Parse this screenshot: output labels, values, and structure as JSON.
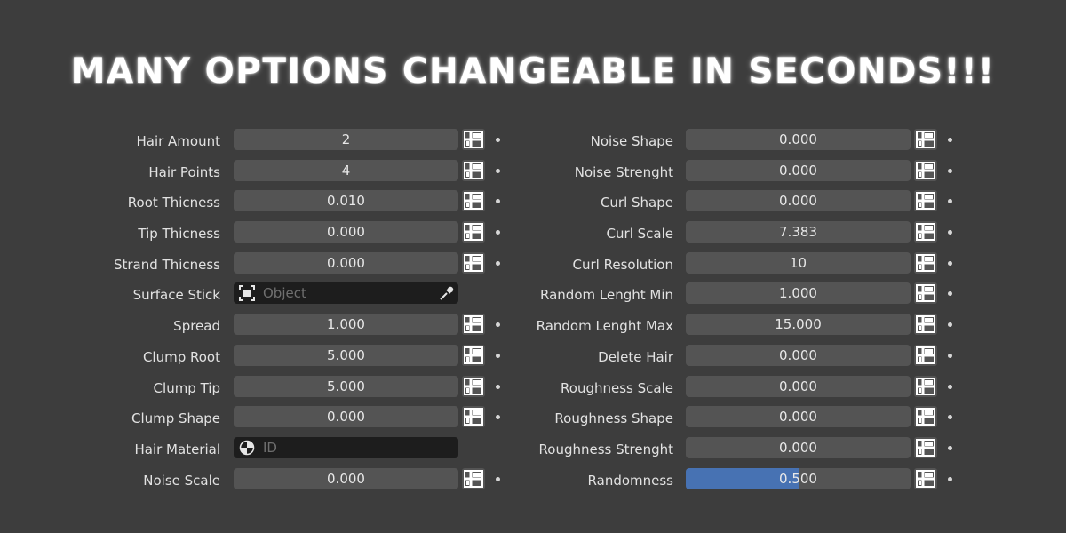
{
  "title": "MANY OPTIONS CHANGEABLE IN SECONDS!!!",
  "left_fields": [
    {
      "label": "Hair Amount",
      "value": "2"
    },
    {
      "label": "Hair Points",
      "value": "4"
    },
    {
      "label": "Root Thicness",
      "value": "0.010"
    },
    {
      "label": "Tip Thicness",
      "value": "0.000"
    },
    {
      "label": "Strand Thicness",
      "value": "0.000"
    },
    {
      "label": "Surface Stick",
      "placeholder": "Object",
      "icon": "object-icon",
      "trail_icon": "eyedropper-icon"
    },
    {
      "label": "Spread",
      "value": "1.000"
    },
    {
      "label": "Clump Root",
      "value": "5.000"
    },
    {
      "label": "Clump Tip",
      "value": "5.000"
    },
    {
      "label": "Clump Shape",
      "value": "0.000"
    },
    {
      "label": "Hair Material",
      "placeholder": "ID",
      "icon": "material-icon"
    },
    {
      "label": "Noise Scale",
      "value": "0.000"
    }
  ],
  "right_fields": [
    {
      "label": "Noise Shape",
      "value": "0.000"
    },
    {
      "label": "Noise Strenght",
      "value": "0.000"
    },
    {
      "label": "Curl Shape",
      "value": "0.000"
    },
    {
      "label": "Curl Scale",
      "value": "7.383"
    },
    {
      "label": "Curl Resolution",
      "value": "10"
    },
    {
      "label": "Random Lenght Min",
      "value": "1.000"
    },
    {
      "label": "Random Lenght Max",
      "value": "15.000"
    },
    {
      "label": "Delete Hair",
      "value": "0.000"
    },
    {
      "label": "Roughness Scale",
      "value": "0.000"
    },
    {
      "label": "Roughness Shape",
      "value": "0.000"
    },
    {
      "label": "Roughness Strenght",
      "value": "0.000"
    },
    {
      "label": "Randomness",
      "value": "0.500",
      "slider_fraction": 0.5
    }
  ],
  "colors": {
    "background": "#3d3d3d",
    "field": "#545454",
    "field_dark": "#1d1d1d",
    "slider_accent": "#4772b3",
    "text": "#e6e6e6"
  },
  "icons": {
    "keyframe_button": "grid-icon",
    "animate_dot": "dot-icon"
  }
}
